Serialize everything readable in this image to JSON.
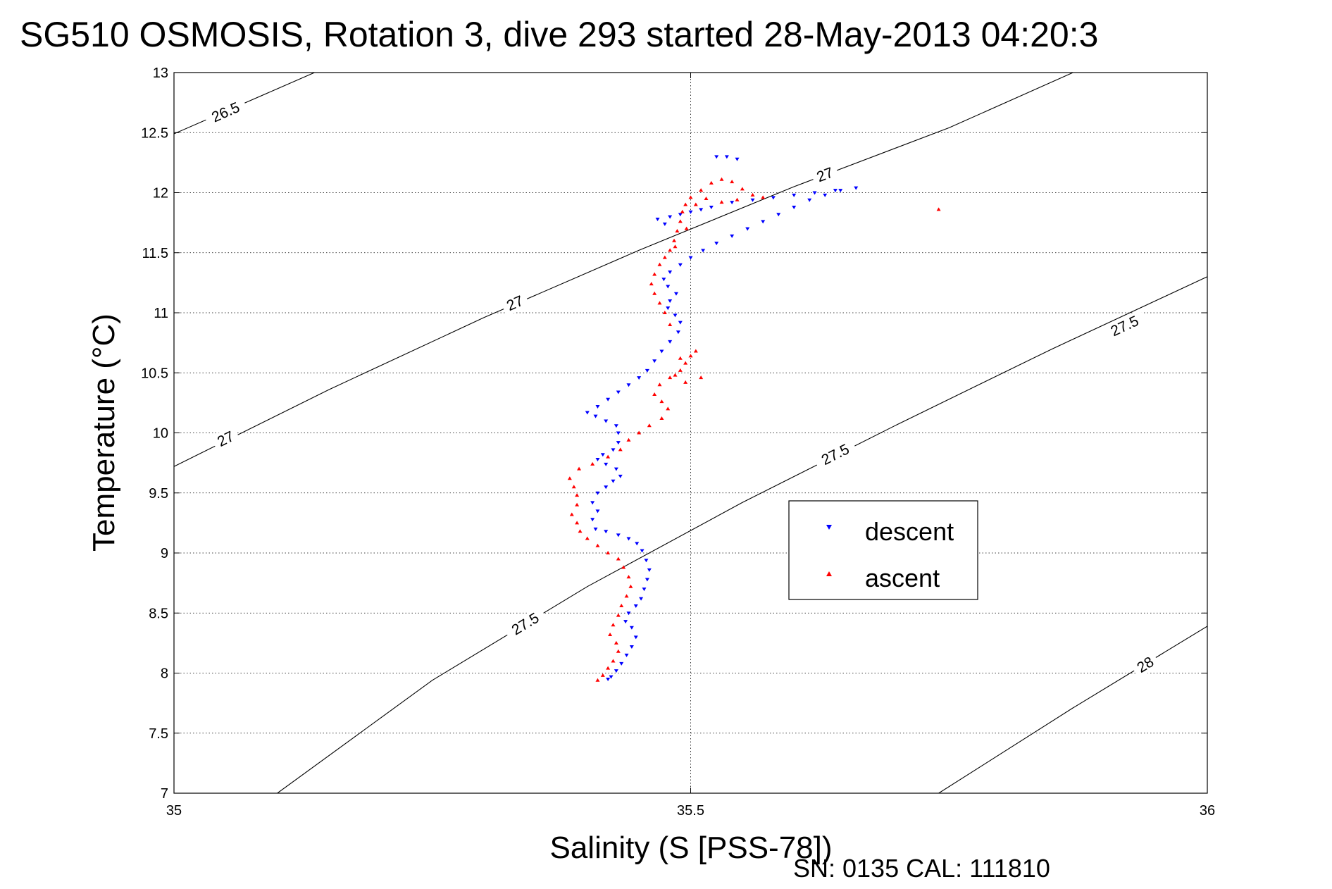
{
  "chart_data": {
    "type": "scatter",
    "title": "SG510 OSMOSIS, Rotation 3, dive 293 started 28-May-2013 04:20:3",
    "xlabel": "Salinity (S [PSS-78])",
    "ylabel": "Temperature (°C)",
    "xlim": [
      35,
      36
    ],
    "ylim": [
      7,
      13
    ],
    "x_ticks": [
      "35",
      "35.5",
      "36"
    ],
    "x_tick_values": [
      35,
      35.5,
      36
    ],
    "y_ticks": [
      "7",
      "7.5",
      "8",
      "8.5",
      "9",
      "9.5",
      "10",
      "10.5",
      "11",
      "11.5",
      "12",
      "12.5",
      "13"
    ],
    "y_tick_values": [
      7,
      7.5,
      8,
      8.5,
      9,
      9.5,
      10,
      10.5,
      11,
      11.5,
      12,
      12.5,
      13
    ],
    "grid": true,
    "legend_position": "right-center",
    "series": [
      {
        "name": "descent",
        "color": "#0000ff",
        "marker": "triangle-down",
        "points": [
          [
            35.42,
            7.95
          ],
          [
            35.423,
            7.97
          ],
          [
            35.428,
            8.02
          ],
          [
            35.433,
            8.08
          ],
          [
            35.438,
            8.15
          ],
          [
            35.443,
            8.22
          ],
          [
            35.447,
            8.3
          ],
          [
            35.443,
            8.38
          ],
          [
            35.437,
            8.43
          ],
          [
            35.44,
            8.5
          ],
          [
            35.447,
            8.56
          ],
          [
            35.452,
            8.62
          ],
          [
            35.455,
            8.7
          ],
          [
            35.458,
            8.78
          ],
          [
            35.46,
            8.86
          ],
          [
            35.457,
            8.94
          ],
          [
            35.453,
            9.02
          ],
          [
            35.448,
            9.08
          ],
          [
            35.44,
            9.12
          ],
          [
            35.43,
            9.15
          ],
          [
            35.418,
            9.18
          ],
          [
            35.408,
            9.2
          ],
          [
            35.405,
            9.28
          ],
          [
            35.41,
            9.35
          ],
          [
            35.405,
            9.42
          ],
          [
            35.41,
            9.5
          ],
          [
            35.418,
            9.55
          ],
          [
            35.425,
            9.6
          ],
          [
            35.432,
            9.64
          ],
          [
            35.428,
            9.7
          ],
          [
            35.418,
            9.74
          ],
          [
            35.41,
            9.78
          ],
          [
            35.415,
            9.82
          ],
          [
            35.425,
            9.86
          ],
          [
            35.43,
            9.92
          ],
          [
            35.43,
            10.0
          ],
          [
            35.428,
            10.06
          ],
          [
            35.418,
            10.1
          ],
          [
            35.408,
            10.14
          ],
          [
            35.4,
            10.17
          ],
          [
            35.41,
            10.22
          ],
          [
            35.42,
            10.28
          ],
          [
            35.43,
            10.34
          ],
          [
            35.44,
            10.4
          ],
          [
            35.45,
            10.46
          ],
          [
            35.458,
            10.52
          ],
          [
            35.465,
            10.6
          ],
          [
            35.472,
            10.68
          ],
          [
            35.48,
            10.76
          ],
          [
            35.488,
            10.84
          ],
          [
            35.49,
            10.92
          ],
          [
            35.485,
            10.98
          ],
          [
            35.478,
            11.04
          ],
          [
            35.48,
            11.1
          ],
          [
            35.486,
            11.16
          ],
          [
            35.478,
            11.22
          ],
          [
            35.474,
            11.28
          ],
          [
            35.48,
            11.34
          ],
          [
            35.49,
            11.4
          ],
          [
            35.5,
            11.46
          ],
          [
            35.512,
            11.52
          ],
          [
            35.525,
            11.58
          ],
          [
            35.54,
            11.64
          ],
          [
            35.555,
            11.7
          ],
          [
            35.57,
            11.76
          ],
          [
            35.585,
            11.82
          ],
          [
            35.6,
            11.88
          ],
          [
            35.615,
            11.94
          ],
          [
            35.63,
            11.98
          ],
          [
            35.645,
            12.02
          ],
          [
            35.66,
            12.04
          ],
          [
            35.64,
            12.02
          ],
          [
            35.62,
            12.0
          ],
          [
            35.6,
            11.98
          ],
          [
            35.58,
            11.96
          ],
          [
            35.56,
            11.94
          ],
          [
            35.54,
            11.92
          ],
          [
            35.52,
            11.88
          ],
          [
            35.5,
            11.84
          ],
          [
            35.48,
            11.8
          ],
          [
            35.468,
            11.78
          ],
          [
            35.475,
            11.74
          ],
          [
            35.49,
            11.82
          ],
          [
            35.51,
            11.86
          ],
          [
            35.525,
            12.3
          ],
          [
            35.535,
            12.3
          ],
          [
            35.545,
            12.28
          ]
        ]
      },
      {
        "name": "ascent",
        "color": "#ff0000",
        "marker": "triangle-up",
        "points": [
          [
            35.41,
            7.94
          ],
          [
            35.415,
            7.98
          ],
          [
            35.42,
            8.04
          ],
          [
            35.425,
            8.1
          ],
          [
            35.43,
            8.18
          ],
          [
            35.428,
            8.25
          ],
          [
            35.422,
            8.32
          ],
          [
            35.425,
            8.4
          ],
          [
            35.43,
            8.48
          ],
          [
            35.433,
            8.56
          ],
          [
            35.438,
            8.64
          ],
          [
            35.442,
            8.72
          ],
          [
            35.44,
            8.8
          ],
          [
            35.435,
            8.88
          ],
          [
            35.43,
            8.95
          ],
          [
            35.42,
            9.0
          ],
          [
            35.41,
            9.06
          ],
          [
            35.4,
            9.12
          ],
          [
            35.393,
            9.18
          ],
          [
            35.39,
            9.25
          ],
          [
            35.385,
            9.32
          ],
          [
            35.39,
            9.4
          ],
          [
            35.39,
            9.48
          ],
          [
            35.387,
            9.55
          ],
          [
            35.383,
            9.62
          ],
          [
            35.392,
            9.7
          ],
          [
            35.405,
            9.74
          ],
          [
            35.42,
            9.8
          ],
          [
            35.432,
            9.86
          ],
          [
            35.44,
            9.94
          ],
          [
            35.45,
            10.0
          ],
          [
            35.46,
            10.06
          ],
          [
            35.472,
            10.12
          ],
          [
            35.478,
            10.2
          ],
          [
            35.472,
            10.26
          ],
          [
            35.465,
            10.32
          ],
          [
            35.47,
            10.4
          ],
          [
            35.48,
            10.46
          ],
          [
            35.49,
            10.52
          ],
          [
            35.495,
            10.58
          ],
          [
            35.5,
            10.64
          ],
          [
            35.505,
            10.68
          ],
          [
            35.51,
            10.46
          ],
          [
            35.495,
            10.42
          ],
          [
            35.485,
            10.48
          ],
          [
            35.49,
            10.62
          ],
          [
            35.48,
            10.9
          ],
          [
            35.475,
            11.0
          ],
          [
            35.47,
            11.08
          ],
          [
            35.465,
            11.16
          ],
          [
            35.462,
            11.24
          ],
          [
            35.465,
            11.32
          ],
          [
            35.47,
            11.4
          ],
          [
            35.475,
            11.46
          ],
          [
            35.48,
            11.52
          ],
          [
            35.484,
            11.6
          ],
          [
            35.487,
            11.68
          ],
          [
            35.49,
            11.76
          ],
          [
            35.492,
            11.84
          ],
          [
            35.495,
            11.9
          ],
          [
            35.5,
            11.96
          ],
          [
            35.51,
            12.02
          ],
          [
            35.52,
            12.08
          ],
          [
            35.53,
            12.11
          ],
          [
            35.54,
            12.09
          ],
          [
            35.55,
            12.03
          ],
          [
            35.56,
            11.98
          ],
          [
            35.57,
            11.96
          ],
          [
            35.545,
            11.94
          ],
          [
            35.53,
            11.92
          ],
          [
            35.515,
            11.95
          ],
          [
            35.505,
            11.9
          ],
          [
            35.496,
            11.7
          ],
          [
            35.485,
            11.55
          ],
          [
            35.74,
            11.86
          ]
        ]
      }
    ],
    "contours": [
      {
        "label": "26.5",
        "points": [
          [
            35,
            12.49
          ],
          [
            35.136,
            13.0
          ]
        ],
        "label_at": [
          [
            35.05,
            12.67
          ]
        ]
      },
      {
        "label": "27",
        "points": [
          [
            35,
            9.72
          ],
          [
            35.15,
            10.36
          ],
          [
            35.3,
            10.96
          ],
          [
            35.45,
            11.52
          ],
          [
            35.6,
            12.05
          ],
          [
            35.75,
            12.54
          ],
          [
            35.87,
            13.0
          ]
        ],
        "label_at": [
          [
            35.05,
            9.95
          ],
          [
            35.33,
            11.08
          ],
          [
            35.63,
            12.15
          ]
        ]
      },
      {
        "label": "27.5",
        "points": [
          [
            35.1,
            7.0
          ],
          [
            35.25,
            7.94
          ],
          [
            35.4,
            8.72
          ],
          [
            35.55,
            9.42
          ],
          [
            35.7,
            10.07
          ],
          [
            35.85,
            10.7
          ],
          [
            36,
            11.3
          ]
        ],
        "label_at": [
          [
            35.34,
            8.41
          ],
          [
            35.64,
            9.82
          ],
          [
            35.92,
            10.89
          ]
        ]
      },
      {
        "label": "28",
        "points": [
          [
            35.74,
            7.0
          ],
          [
            35.87,
            7.71
          ],
          [
            36,
            8.39
          ]
        ],
        "label_at": [
          [
            35.94,
            8.07
          ]
        ]
      }
    ]
  },
  "legend": {
    "descent_label": "descent",
    "ascent_label": "ascent"
  },
  "footer": {
    "serial": "SN: 0135  CAL: 111810"
  }
}
